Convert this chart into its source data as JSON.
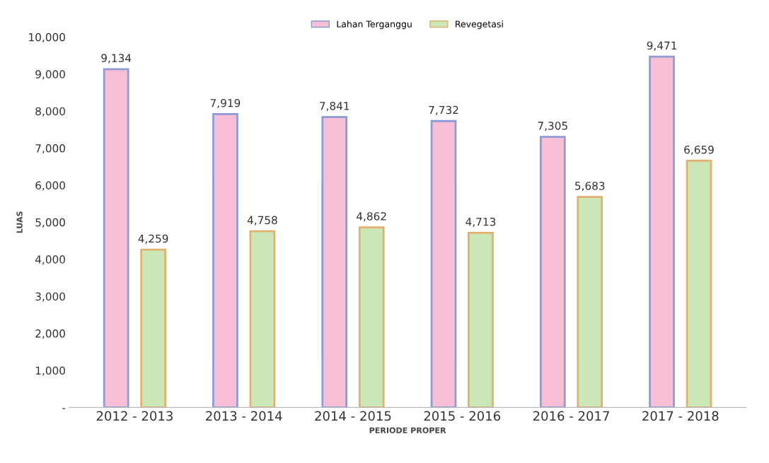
{
  "chart_data": {
    "type": "bar",
    "xlabel": "PERIODE PROPER",
    "ylabel": "LUAS",
    "categories": [
      "2012 - 2013",
      "2013 - 2014",
      "2014 - 2015",
      "2015 - 2016",
      "2016 - 2017",
      "2017 - 2018"
    ],
    "series": [
      {
        "name": "Lahan Terganggu",
        "color": "#f6bfd5",
        "values": [
          9134,
          7919,
          7841,
          7732,
          7305,
          9471
        ],
        "value_labels": [
          "9,134",
          "7,919",
          "7,841",
          "7,732",
          "7,305",
          "9,471"
        ]
      },
      {
        "name": "Revegetasi",
        "color": "#cbe7b8",
        "values": [
          4259,
          4758,
          4862,
          4713,
          5683,
          6659
        ],
        "value_labels": [
          "4,259",
          "4,758",
          "4,862",
          "4,713",
          "5,683",
          "6,659"
        ]
      }
    ],
    "ylim": [
      0,
      10000
    ],
    "yticks": [
      {
        "value": 0,
        "label": "-"
      },
      {
        "value": 1000,
        "label": "1,000"
      },
      {
        "value": 2000,
        "label": "2,000"
      },
      {
        "value": 3000,
        "label": "3,000"
      },
      {
        "value": 4000,
        "label": "4,000"
      },
      {
        "value": 5000,
        "label": "5,000"
      },
      {
        "value": 6000,
        "label": "6,000"
      },
      {
        "value": 7000,
        "label": "7,000"
      },
      {
        "value": 8000,
        "label": "8,000"
      },
      {
        "value": 9000,
        "label": "9,000"
      },
      {
        "value": 10000,
        "label": "10,000"
      }
    ],
    "grid": false,
    "legend": "top"
  }
}
